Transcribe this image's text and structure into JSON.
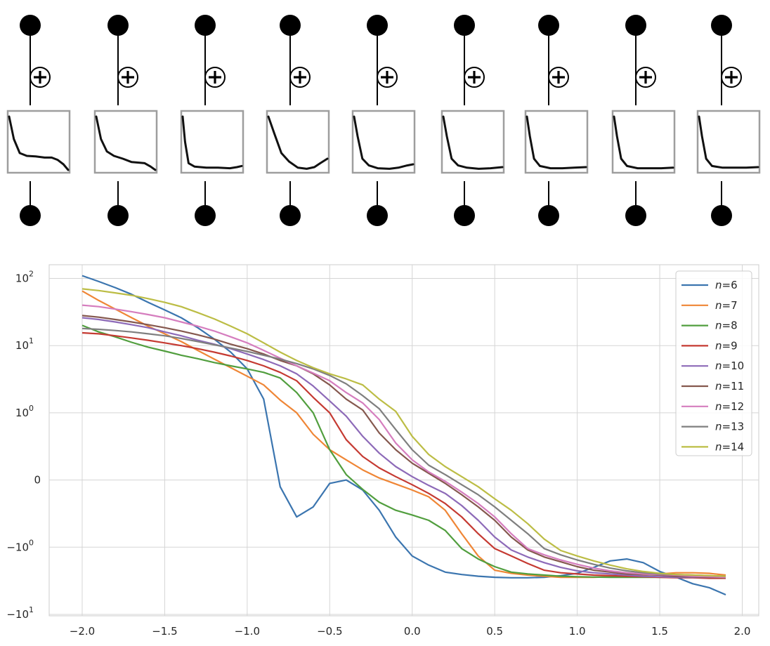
{
  "chart_data": [
    {
      "type": "diagram",
      "description_nodes": 9,
      "node_symbol": "⊕",
      "box_curves": [
        [
          [
            0,
            0.95
          ],
          [
            0.08,
            0.55
          ],
          [
            0.18,
            0.3
          ],
          [
            0.3,
            0.25
          ],
          [
            0.45,
            0.24
          ],
          [
            0.6,
            0.22
          ],
          [
            0.72,
            0.22
          ],
          [
            0.82,
            0.18
          ],
          [
            0.92,
            0.1
          ],
          [
            1.0,
            0.0
          ]
        ],
        [
          [
            0,
            0.95
          ],
          [
            0.08,
            0.55
          ],
          [
            0.18,
            0.33
          ],
          [
            0.3,
            0.25
          ],
          [
            0.45,
            0.2
          ],
          [
            0.6,
            0.14
          ],
          [
            0.72,
            0.13
          ],
          [
            0.82,
            0.12
          ],
          [
            0.92,
            0.06
          ],
          [
            1.0,
            0.0
          ]
        ],
        [
          [
            0,
            0.95
          ],
          [
            0.04,
            0.5
          ],
          [
            0.1,
            0.12
          ],
          [
            0.2,
            0.06
          ],
          [
            0.4,
            0.04
          ],
          [
            0.6,
            0.04
          ],
          [
            0.8,
            0.03
          ],
          [
            0.92,
            0.05
          ],
          [
            1.0,
            0.07
          ]
        ],
        [
          [
            0,
            0.95
          ],
          [
            0.1,
            0.65
          ],
          [
            0.22,
            0.3
          ],
          [
            0.35,
            0.15
          ],
          [
            0.5,
            0.04
          ],
          [
            0.65,
            0.02
          ],
          [
            0.78,
            0.05
          ],
          [
            0.88,
            0.12
          ],
          [
            1.0,
            0.2
          ]
        ],
        [
          [
            0,
            0.95
          ],
          [
            0.06,
            0.6
          ],
          [
            0.14,
            0.2
          ],
          [
            0.25,
            0.08
          ],
          [
            0.4,
            0.03
          ],
          [
            0.6,
            0.02
          ],
          [
            0.75,
            0.04
          ],
          [
            0.9,
            0.08
          ],
          [
            1.0,
            0.1
          ]
        ],
        [
          [
            0,
            0.95
          ],
          [
            0.06,
            0.6
          ],
          [
            0.14,
            0.2
          ],
          [
            0.25,
            0.08
          ],
          [
            0.4,
            0.04
          ],
          [
            0.6,
            0.02
          ],
          [
            0.8,
            0.03
          ],
          [
            1.0,
            0.05
          ]
        ],
        [
          [
            0,
            0.95
          ],
          [
            0.05,
            0.6
          ],
          [
            0.12,
            0.2
          ],
          [
            0.22,
            0.07
          ],
          [
            0.4,
            0.03
          ],
          [
            0.6,
            0.03
          ],
          [
            0.8,
            0.04
          ],
          [
            1.0,
            0.05
          ]
        ],
        [
          [
            0,
            0.95
          ],
          [
            0.05,
            0.6
          ],
          [
            0.12,
            0.2
          ],
          [
            0.22,
            0.07
          ],
          [
            0.4,
            0.03
          ],
          [
            0.6,
            0.03
          ],
          [
            0.8,
            0.03
          ],
          [
            1.0,
            0.04
          ]
        ],
        [
          [
            0,
            0.95
          ],
          [
            0.05,
            0.6
          ],
          [
            0.12,
            0.2
          ],
          [
            0.22,
            0.07
          ],
          [
            0.4,
            0.04
          ],
          [
            0.6,
            0.04
          ],
          [
            0.8,
            0.04
          ],
          [
            1.0,
            0.05
          ]
        ]
      ]
    },
    {
      "type": "line",
      "yscale": "symlog",
      "x_ticks": [
        "−2.0",
        "−1.5",
        "−1.0",
        "−0.5",
        "0.0",
        "0.5",
        "1.0",
        "1.5",
        "2.0"
      ],
      "x_tick_values": [
        -2.0,
        -1.5,
        -1.0,
        -0.5,
        0.0,
        0.5,
        1.0,
        1.5,
        2.0
      ],
      "xlim": [
        -2.2,
        2.1
      ],
      "ylim": [
        -10.5,
        160
      ],
      "y_ticks": [
        {
          "value": 100,
          "base": "10",
          "exp": "2"
        },
        {
          "value": 10,
          "base": "10",
          "exp": "1"
        },
        {
          "value": 1,
          "base": "10",
          "exp": "0"
        },
        {
          "value": 0,
          "base": "0",
          "exp": ""
        },
        {
          "value": -1,
          "base": "−10",
          "exp": "0"
        },
        {
          "value": -10,
          "base": "−10",
          "exp": "1"
        }
      ],
      "grid": true,
      "legend_position": "top-right",
      "legend_prefix": "n",
      "x": [
        -2.0,
        -1.9,
        -1.8,
        -1.7,
        -1.6,
        -1.5,
        -1.4,
        -1.3,
        -1.2,
        -1.1,
        -1.0,
        -0.9,
        -0.8,
        -0.7,
        -0.6,
        -0.5,
        -0.4,
        -0.3,
        -0.2,
        -0.1,
        0.0,
        0.1,
        0.2,
        0.3,
        0.4,
        0.5,
        0.6,
        0.7,
        0.8,
        0.9,
        1.0,
        1.1,
        1.2,
        1.3,
        1.4,
        1.5,
        1.6,
        1.7,
        1.8,
        1.9
      ],
      "series": [
        {
          "name": "=6",
          "color": "#3b75af",
          "values": [
            110,
            90,
            73,
            58,
            44,
            34,
            26,
            18.5,
            12.5,
            8,
            4.5,
            1.6,
            -0.1,
            -0.55,
            -0.4,
            -0.05,
            0.0,
            -0.15,
            -0.45,
            -0.85,
            -1.35,
            -1.85,
            -2.35,
            -2.55,
            -2.7,
            -2.8,
            -2.85,
            -2.85,
            -2.8,
            -2.65,
            -2.45,
            -2.0,
            -1.6,
            -1.5,
            -1.7,
            -2.3,
            -2.8,
            -3.5,
            -4.0,
            -5.1
          ]
        },
        {
          "name": "=7",
          "color": "#ef8636",
          "values": [
            65,
            47,
            35,
            26,
            19.5,
            15,
            11.5,
            8.5,
            6.3,
            4.7,
            3.5,
            2.6,
            1.55,
            1.0,
            0.68,
            0.45,
            0.3,
            0.15,
            0.03,
            -0.06,
            -0.15,
            -0.25,
            -0.45,
            -0.8,
            -1.35,
            -2.2,
            -2.45,
            -2.6,
            -2.7,
            -2.8,
            -2.8,
            -2.8,
            -2.75,
            -2.7,
            -2.6,
            -2.5,
            -2.4,
            -2.4,
            -2.45,
            -2.6
          ]
        },
        {
          "name": "=8",
          "color": "#519e3e",
          "values": [
            20,
            16,
            13.5,
            11.2,
            9.5,
            8.3,
            7.2,
            6.4,
            5.6,
            5.0,
            4.5,
            4.0,
            3.3,
            2.0,
            1.0,
            0.45,
            0.08,
            -0.14,
            -0.33,
            -0.45,
            -0.52,
            -0.6,
            -0.75,
            -1.05,
            -1.5,
            -1.95,
            -2.35,
            -2.5,
            -2.6,
            -2.7,
            -2.75,
            -2.78,
            -2.8,
            -2.8,
            -2.8,
            -2.8,
            -2.8,
            -2.8,
            -2.8,
            -2.8
          ]
        },
        {
          "name": "=9",
          "color": "#c53a32",
          "values": [
            15.5,
            15.0,
            14.0,
            13.0,
            12.0,
            11.0,
            10.0,
            9.0,
            8.0,
            7.0,
            6.0,
            5.0,
            4.0,
            3.0,
            1.7,
            1.0,
            0.6,
            0.35,
            0.18,
            0.05,
            -0.07,
            -0.2,
            -0.35,
            -0.55,
            -0.8,
            -1.05,
            -1.35,
            -1.75,
            -2.2,
            -2.4,
            -2.5,
            -2.6,
            -2.65,
            -2.7,
            -2.75,
            -2.8,
            -2.85,
            -2.85,
            -2.9,
            -2.9
          ]
        },
        {
          "name": "=10",
          "color": "#8d6ab8",
          "values": [
            26,
            24.5,
            22.5,
            20.5,
            18.5,
            16.0,
            14.0,
            12.0,
            10.5,
            9.0,
            7.5,
            6.2,
            5.0,
            3.8,
            2.5,
            1.5,
            0.95,
            0.65,
            0.4,
            0.2,
            0.05,
            -0.08,
            -0.2,
            -0.38,
            -0.6,
            -0.85,
            -1.1,
            -1.4,
            -1.7,
            -2.0,
            -2.25,
            -2.4,
            -2.5,
            -2.6,
            -2.7,
            -2.75,
            -2.8,
            -2.8,
            -2.8,
            -2.8
          ]
        },
        {
          "name": "=11",
          "color": "#85584e",
          "values": [
            28,
            26.5,
            24.5,
            22.5,
            20.5,
            18.5,
            16.5,
            14.5,
            12.5,
            10.5,
            9.0,
            7.5,
            6.0,
            5.0,
            3.8,
            2.6,
            1.6,
            1.1,
            0.7,
            0.45,
            0.25,
            0.1,
            -0.05,
            -0.22,
            -0.4,
            -0.6,
            -0.85,
            -1.1,
            -1.4,
            -1.65,
            -1.95,
            -2.2,
            -2.35,
            -2.5,
            -2.55,
            -2.6,
            -2.7,
            -2.75,
            -2.8,
            -2.85
          ]
        },
        {
          "name": "=12",
          "color": "#d57dbe",
          "values": [
            40,
            38,
            35,
            32,
            29,
            26,
            22.5,
            19.5,
            16.5,
            13.5,
            11.0,
            8.5,
            6.5,
            5.0,
            3.9,
            3.0,
            2.0,
            1.4,
            0.9,
            0.55,
            0.3,
            0.12,
            -0.02,
            -0.18,
            -0.35,
            -0.55,
            -0.8,
            -1.05,
            -1.3,
            -1.55,
            -1.8,
            -2.05,
            -2.25,
            -2.4,
            -2.5,
            -2.55,
            -2.6,
            -2.7,
            -2.75,
            -2.8
          ]
        },
        {
          "name": "=13",
          "color": "#7f7f7f",
          "values": [
            18,
            17.5,
            16.8,
            16.0,
            15.0,
            14.0,
            12.8,
            11.5,
            10.3,
            9.2,
            8.2,
            7.2,
            6.3,
            5.4,
            4.5,
            3.6,
            2.7,
            1.8,
            1.15,
            0.75,
            0.45,
            0.22,
            0.08,
            -0.07,
            -0.22,
            -0.4,
            -0.6,
            -0.8,
            -1.05,
            -1.3,
            -1.55,
            -1.8,
            -2.05,
            -2.25,
            -2.4,
            -2.5,
            -2.55,
            -2.6,
            -2.65,
            -2.7
          ]
        },
        {
          "name": "=14",
          "color": "#bcbd45",
          "values": [
            70,
            66,
            61,
            56,
            50,
            44,
            38,
            31,
            25,
            19.5,
            15.0,
            11.0,
            8.0,
            6.0,
            4.7,
            3.8,
            3.2,
            2.6,
            1.6,
            1.05,
            0.65,
            0.38,
            0.2,
            0.05,
            -0.1,
            -0.28,
            -0.45,
            -0.65,
            -0.88,
            -1.12,
            -1.35,
            -1.6,
            -1.85,
            -2.1,
            -2.3,
            -2.45,
            -2.55,
            -2.6,
            -2.65,
            -2.7
          ]
        }
      ]
    }
  ]
}
